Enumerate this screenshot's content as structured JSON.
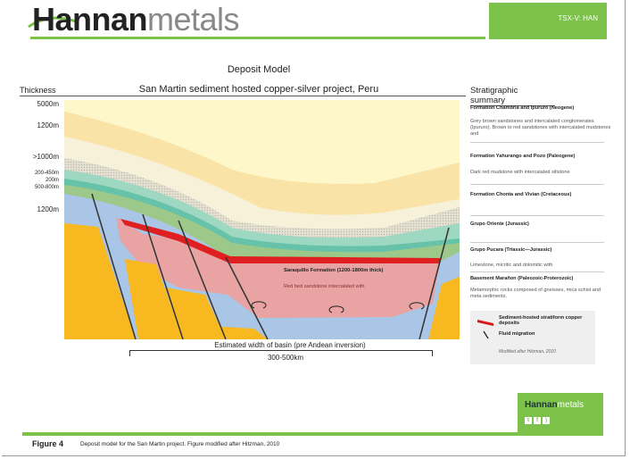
{
  "header": {
    "logo_bold": "Hannan",
    "logo_light": "metals",
    "ticker": "TSX-V: HAN"
  },
  "title": "Deposit Model",
  "subtitle": "San Martin sediment hosted copper-silver project, Peru",
  "thickness": {
    "label": "Thickness",
    "values": [
      "5000m",
      "1200m",
      ">1000m",
      "200-450m",
      "200m",
      "500-800m",
      "1200m"
    ]
  },
  "strat": {
    "title": "Stratigraphic summary",
    "entries": [
      {
        "heading": "Formation Chambria and Ipururo (Neogene)",
        "desc": "Grey brown sandstones and intercalated conglomerates (Ipururo). Brown to red sandstones with intercalated mudstones and"
      },
      {
        "heading": "Formation Yahurango and Pozo (Paleogene)",
        "desc": "Dark red mudstone with intercalated siltstone"
      },
      {
        "heading": "Formation Chonta and Vivian (Cretaceous)",
        "desc": ""
      },
      {
        "heading": "Grupo Oriente (Jurassic)",
        "desc": ""
      },
      {
        "heading": "Grupo Pucara (Triassic—Jurassic)",
        "desc": "Limestone, micritic and dolomitic with"
      },
      {
        "heading": "Basement Marañon (Paleozoic-Proterozoic)",
        "desc": "Metamorphic rocks composed of gneisses, mica schist and meta sediments."
      }
    ]
  },
  "legend": {
    "deposits": "Sediment-hosted stratiform copper deposits",
    "fluid": "Fluid migration",
    "credit": "Modified after Hitzman, 2010"
  },
  "diagram": {
    "formation": "Saraquillo Formation (1200-1800m thick)",
    "formation_desc": "Red bed sandstone intercalated with",
    "basin_label": "Estimated width of basin (pre Andean inversion)",
    "basin_range": "300-500km"
  },
  "footer": {
    "logo_bold": "Hannan",
    "logo_light": "metals",
    "figure_label": "Figure 4",
    "caption": "Deposit model for the San Martin project. Figure  modified after Hitzman, 2010"
  },
  "colors": {
    "brand_green": "#7cc14a"
  }
}
